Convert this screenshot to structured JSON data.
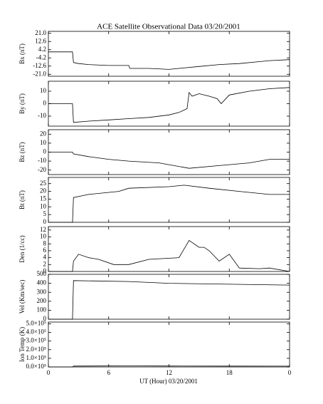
{
  "chart_data": [
    {
      "type": "line",
      "title": "ACE Satellite Observational Data  03/20/2001",
      "ylabel": "Bx (nT)",
      "ylim": [
        -23,
        23
      ],
      "yticks": [
        {
          "value": 21,
          "label": "21.0"
        },
        12.6,
        4.2,
        -4.2,
        -12.6,
        {
          "value": -21,
          "label": "-21.0"
        }
      ],
      "x": [
        0,
        2.4,
        2.5,
        3,
        4,
        6,
        8,
        8.1,
        10,
        12,
        13,
        15,
        17,
        19,
        21,
        22,
        24
      ],
      "series": [
        {
          "color": "#000000",
          "values": [
            2,
            2,
            -9,
            -10,
            -11,
            -12,
            -12,
            -15,
            -15,
            -16,
            -15,
            -13,
            -11,
            -10,
            -8,
            -7,
            -6
          ]
        }
      ]
    },
    {
      "type": "line",
      "ylabel": "By (nT)",
      "ylim": [
        -18,
        18
      ],
      "yticks": [
        10,
        0,
        -10
      ],
      "x": [
        0,
        2.4,
        2.5,
        4,
        6,
        8,
        10,
        12,
        13,
        13.8,
        14,
        14.3,
        15,
        16,
        16.8,
        17.2,
        18,
        20,
        22,
        24
      ],
      "series": [
        {
          "color": "#000000",
          "values": [
            0,
            0,
            -15,
            -14,
            -13,
            -12,
            -11,
            -9,
            -7,
            -4,
            9,
            6,
            8,
            6,
            4,
            0,
            7,
            10,
            12,
            13
          ]
        }
      ]
    },
    {
      "type": "line",
      "ylabel": "Bz (nT)",
      "ylim": [
        -25,
        25
      ],
      "yticks": [
        20,
        10,
        0,
        -10,
        -20
      ],
      "x": [
        0,
        2.4,
        2.5,
        4,
        6,
        8,
        11,
        14,
        17,
        20,
        22,
        24
      ],
      "series": [
        {
          "color": "#000000",
          "values": [
            0,
            0,
            -2,
            -5,
            -8,
            -10,
            -12,
            -18,
            -15,
            -12,
            -8,
            -8
          ]
        }
      ]
    },
    {
      "type": "line",
      "ylabel": "Bt (nT)",
      "ylim": [
        0,
        29
      ],
      "yticks": [
        25,
        20,
        15,
        10,
        5,
        0
      ],
      "x": [
        0,
        2.4,
        2.5,
        4,
        7,
        8,
        12,
        13.5,
        16,
        19,
        22,
        24
      ],
      "series": [
        {
          "color": "#000000",
          "values": [
            0,
            0,
            16,
            18,
            20,
            22,
            23,
            24,
            22,
            20,
            18,
            18
          ]
        }
      ]
    },
    {
      "type": "line",
      "ylabel": "Den (1/cc)",
      "ylim": [
        0,
        13
      ],
      "yticks": [
        12,
        10,
        8,
        6,
        4,
        2,
        0
      ],
      "x": [
        0,
        2.4,
        2.5,
        3,
        4,
        5,
        6.5,
        8,
        10,
        13,
        14,
        15,
        15.5,
        16,
        17,
        18,
        19,
        21,
        22,
        24
      ],
      "series": [
        {
          "color": "#000000",
          "values": [
            0,
            0,
            3,
            5,
            4,
            3.5,
            2,
            2,
            3.5,
            4,
            9,
            7,
            7,
            6,
            3,
            5,
            1,
            0.8,
            1,
            0
          ]
        }
      ]
    },
    {
      "type": "line",
      "ylabel": "Vel (Km/sec)",
      "ylim": [
        0,
        500
      ],
      "yticks": [
        500,
        400,
        300,
        200,
        100,
        0
      ],
      "x": [
        0,
        2.4,
        2.5,
        8,
        12,
        18,
        24
      ],
      "series": [
        {
          "color": "#000000",
          "values": [
            0,
            0,
            430,
            420,
            400,
            390,
            380
          ]
        }
      ]
    },
    {
      "type": "line",
      "ylabel": "Ion Temp (K)",
      "ylim": [
        0,
        520000
      ],
      "yticks": [
        {
          "value": 500000,
          "label": "5.0×10⁵"
        },
        {
          "value": 400000,
          "label": "4.0×10⁵"
        },
        {
          "value": 300000,
          "label": "3.0×10⁵"
        },
        {
          "value": 200000,
          "label": "2.0×10⁵"
        },
        {
          "value": 100000,
          "label": "1.0×10⁵"
        },
        {
          "value": 0,
          "label": "0.0×10⁵"
        }
      ],
      "xlabel": "UT (Hour)  03/20/2001",
      "xlim": [
        0,
        24
      ],
      "xticks": [
        0,
        6,
        12,
        18,
        {
          "value": 24,
          "label": "0"
        }
      ],
      "x": [
        0,
        2.4,
        2.5,
        8,
        12,
        18,
        24
      ],
      "series": [
        {
          "color": "#000000",
          "values": [
            0,
            0,
            10000,
            12000,
            11000,
            10000,
            9000
          ]
        }
      ]
    }
  ]
}
